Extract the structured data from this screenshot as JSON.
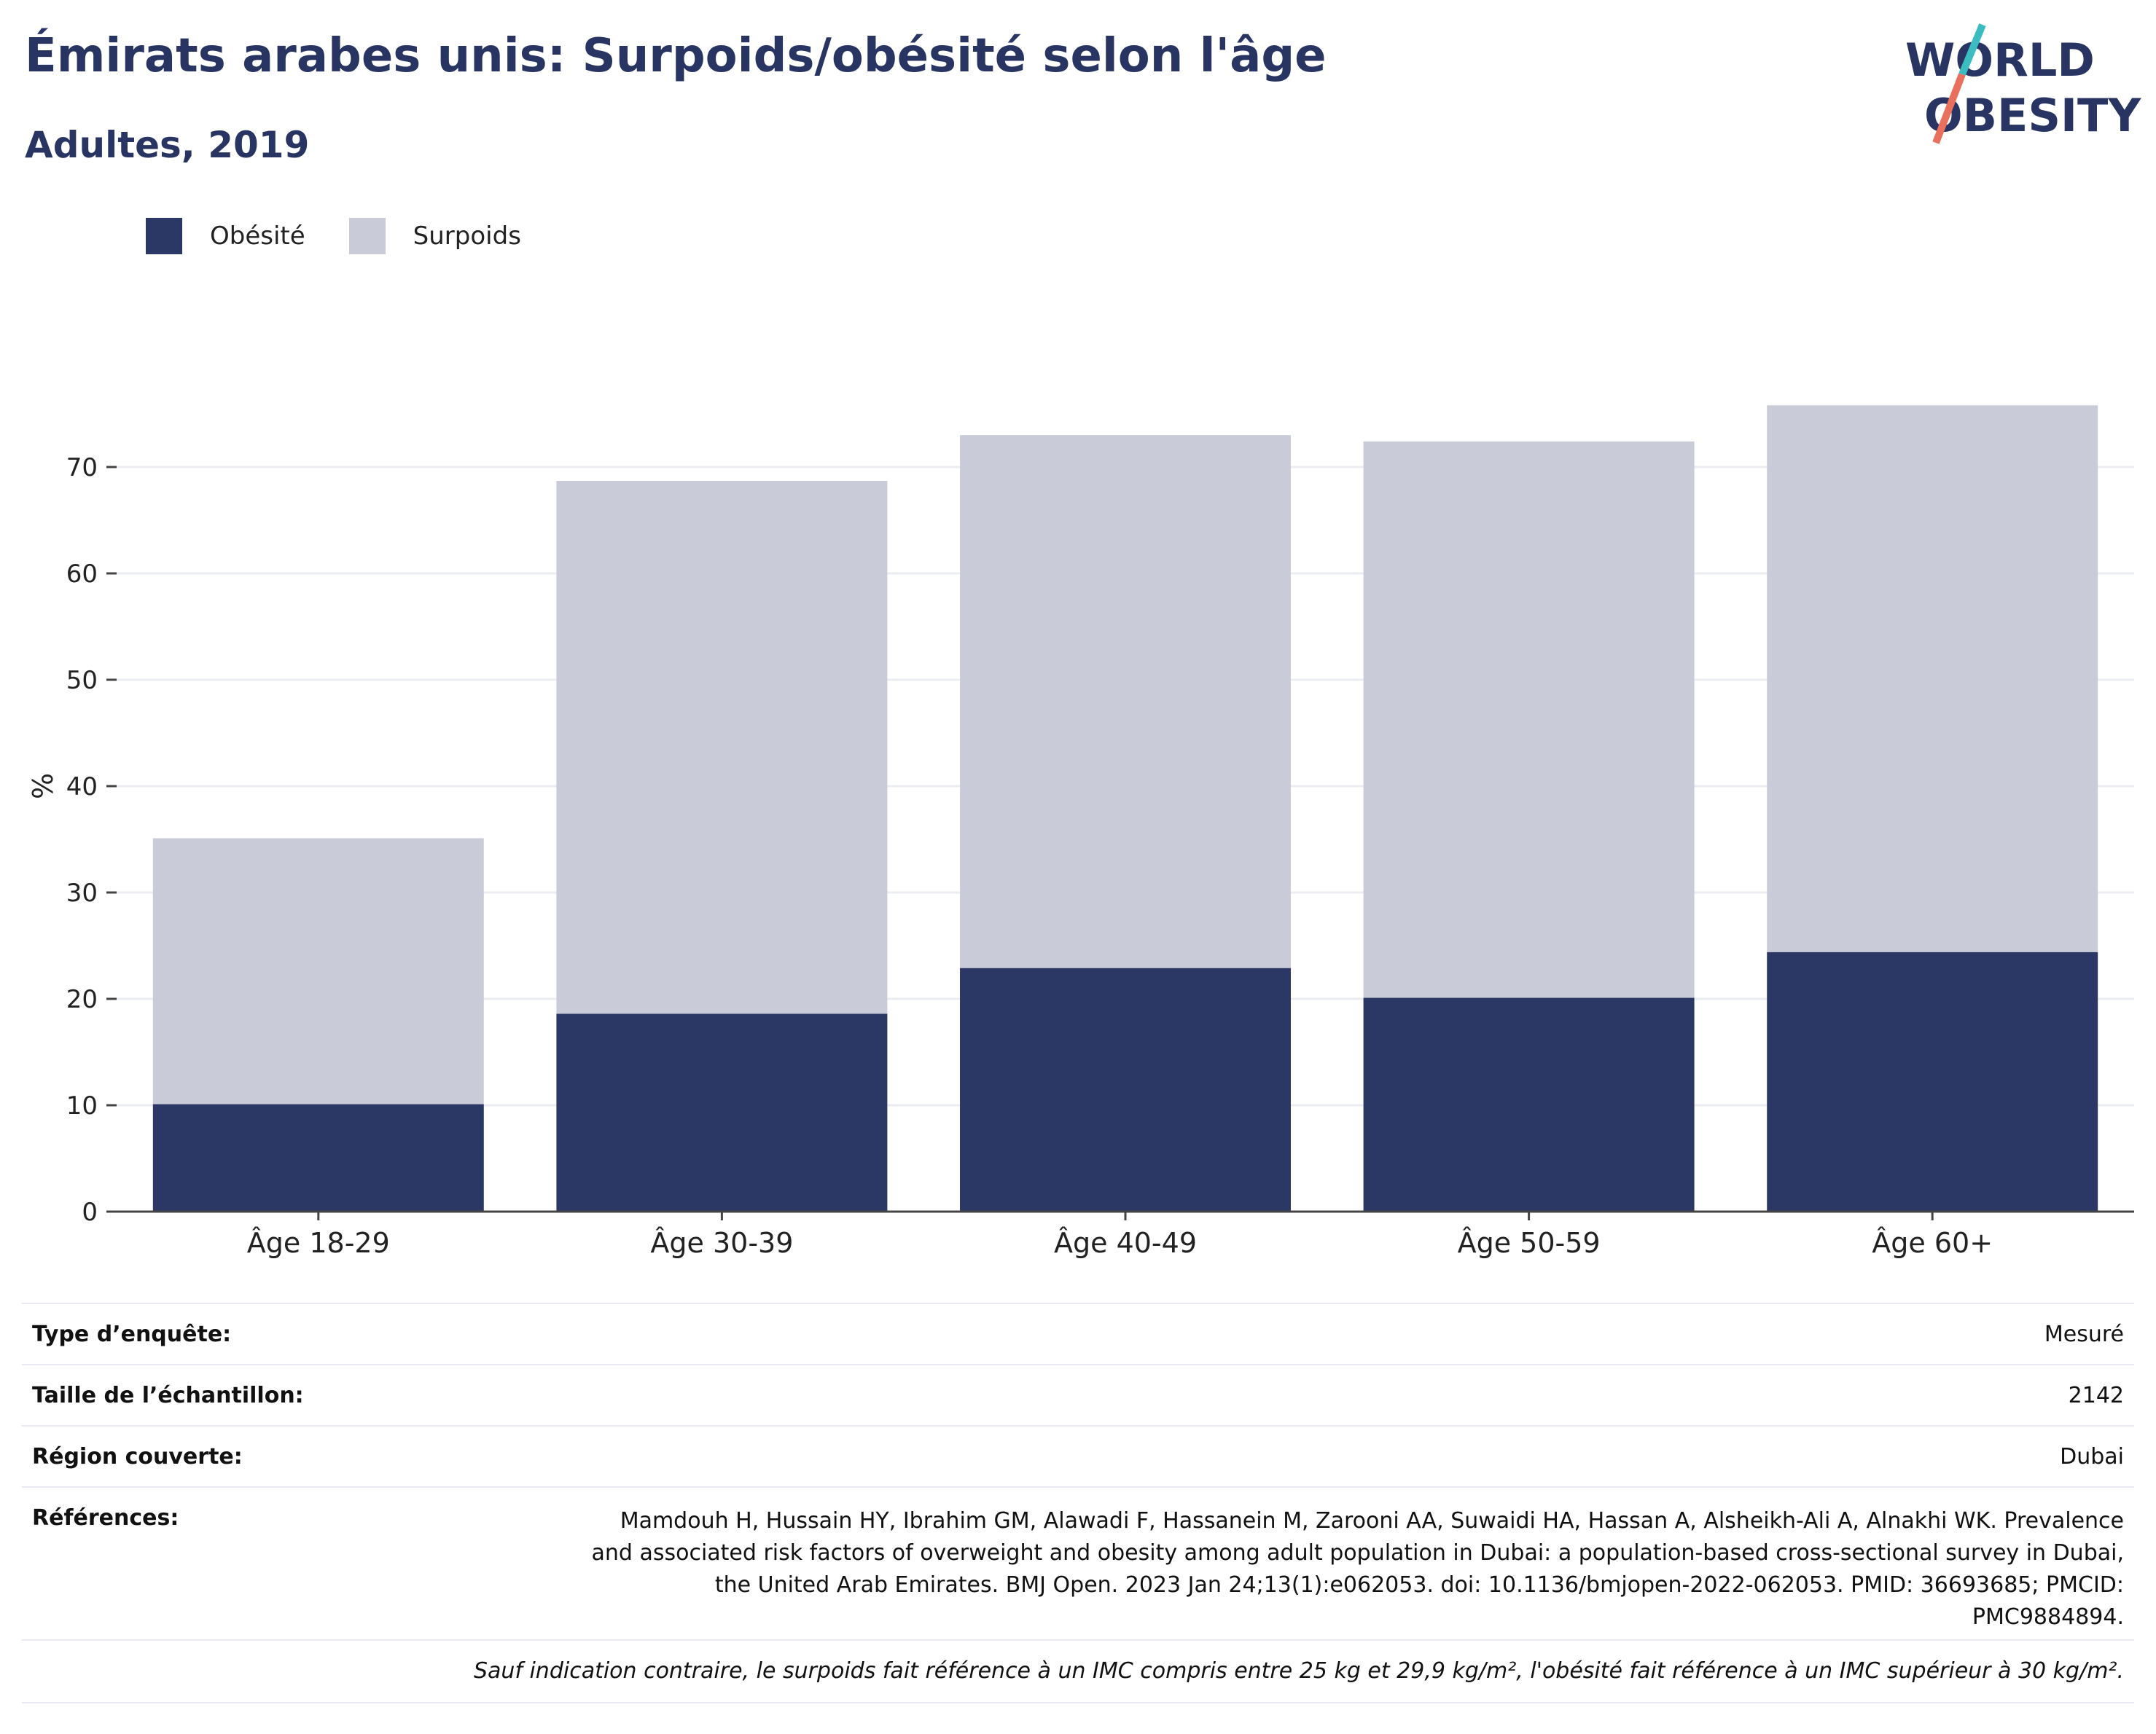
{
  "header": {
    "title": "Émirats arabes unis: Surpoids/obésité selon l'âge",
    "subtitle": "Adultes, 2019"
  },
  "logo": {
    "line1": "WORLD",
    "line2": "OBESITY",
    "colors": {
      "text": "#283562",
      "slash_top": "#3bbcc1",
      "slash_bottom": "#e8705d"
    }
  },
  "legend": [
    {
      "label": "Obésité",
      "color": "#2b3765"
    },
    {
      "label": "Surpoids",
      "color": "#c9ccd8"
    }
  ],
  "chart_data": {
    "type": "bar",
    "stacked": true,
    "categories": [
      "Âge 18-29",
      "Âge 30-39",
      "Âge 40-49",
      "Âge 50-59",
      "Âge 60+"
    ],
    "series": [
      {
        "name": "Obésité",
        "values": [
          10.1,
          18.6,
          22.9,
          20.1,
          24.4
        ],
        "color": "#2b3765"
      },
      {
        "name": "Surpoids",
        "values": [
          25.0,
          50.1,
          50.1,
          52.3,
          51.4
        ],
        "color": "#c9ccd8"
      }
    ],
    "ylabel": "%",
    "ylim": [
      0,
      80
    ],
    "yticks": [
      0,
      10,
      20,
      30,
      40,
      50,
      60,
      70
    ],
    "grid": true,
    "legend_position": "top-left"
  },
  "info": {
    "rows": [
      {
        "label": "Type d’enquête:",
        "value": "Mesuré"
      },
      {
        "label": "Taille de l’échantillon:",
        "value": "2142"
      },
      {
        "label": "Région couverte:",
        "value": "Dubai"
      },
      {
        "label": "Références:",
        "value": "Mamdouh H, Hussain HY, Ibrahim GM, Alawadi F, Hassanein M, Zarooni AA, Suwaidi HA, Hassan A, Alsheikh-Ali A, Alnakhi WK. Prevalence and associated risk factors of overweight and obesity among adult population in Dubai: a population-based cross-sectional survey in Dubai, the United Arab Emirates. BMJ Open. 2023 Jan 24;13(1):e062053. doi: 10.1136/bmjopen-2022-062053. PMID: 36693685; PMCID: PMC9884894."
      }
    ],
    "note": "Sauf indication contraire, le surpoids fait référence à un IMC compris entre 25 kg et 29,9 kg/m², l'obésité fait référence à un IMC supérieur à 30 kg/m²."
  }
}
